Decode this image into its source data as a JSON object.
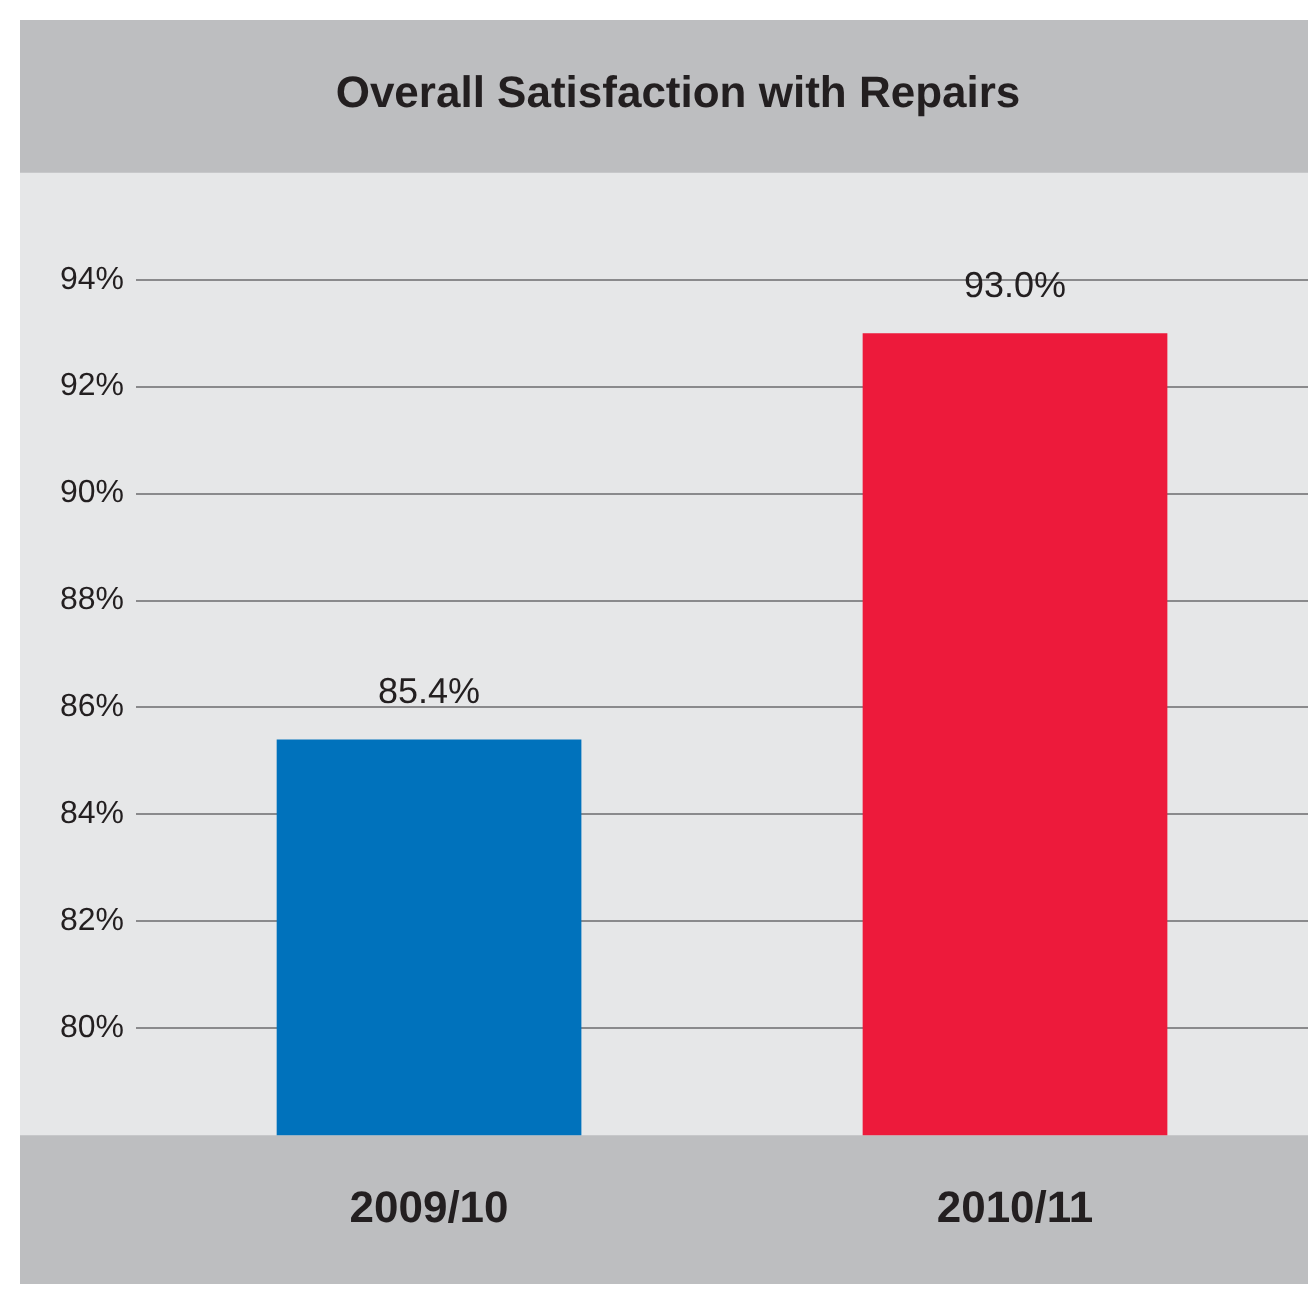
{
  "chart_data": {
    "type": "bar",
    "title": "Overall Satisfaction with Repairs",
    "categories": [
      "2009/10",
      "2010/11"
    ],
    "values": [
      85.4,
      93.0
    ],
    "colors": [
      "#0072bc",
      "#ed1a3b"
    ],
    "value_labels": [
      "85.4%",
      "93.0%"
    ],
    "ylim": [
      78,
      96
    ],
    "yticks": [
      {
        "value": 80,
        "label": "80%"
      },
      {
        "value": 82,
        "label": "82%"
      },
      {
        "value": 84,
        "label": "84%"
      },
      {
        "value": 86,
        "label": "86%"
      },
      {
        "value": 88,
        "label": "88%"
      },
      {
        "value": 90,
        "label": "90%"
      },
      {
        "value": 92,
        "label": "92%"
      },
      {
        "value": 94,
        "label": "94%"
      }
    ],
    "grid": "y",
    "legend": false
  }
}
